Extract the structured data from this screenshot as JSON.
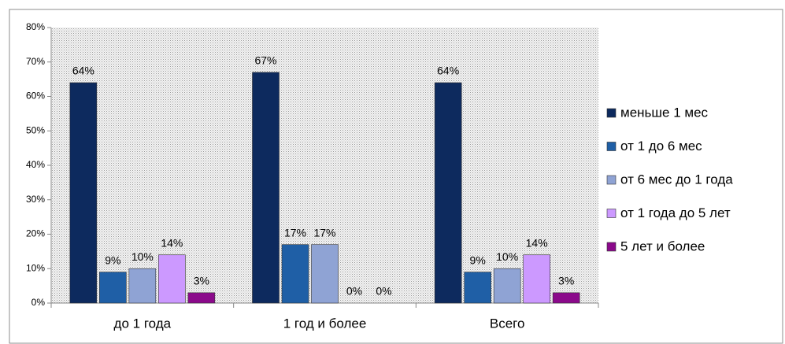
{
  "chart_data": {
    "type": "bar",
    "categories": [
      "до 1 года",
      "1 год и более",
      "Всего"
    ],
    "series": [
      {
        "name": "меньше 1 мес",
        "color": "#0d2a5e",
        "values": [
          64,
          67,
          64
        ],
        "value_labels": [
          "64%",
          "67%",
          "64%"
        ]
      },
      {
        "name": "от 1 до 6 мес",
        "color": "#1f5fa6",
        "values": [
          9,
          17,
          9
        ],
        "value_labels": [
          "9%",
          "17%",
          "9%"
        ]
      },
      {
        "name": "от 6 мес до 1 года",
        "color": "#8fa3d4",
        "values": [
          10,
          17,
          10
        ],
        "value_labels": [
          "10%",
          "17%",
          "10%"
        ]
      },
      {
        "name": "от 1 года до 5 лет",
        "color": "#cc99ff",
        "values": [
          14,
          0,
          14
        ],
        "value_labels": [
          "14%",
          "0%",
          "14%"
        ]
      },
      {
        "name": "5 лет и более",
        "color": "#8b0a8b",
        "values": [
          3,
          0,
          3
        ],
        "value_labels": [
          "3%",
          "0%",
          "3%"
        ]
      }
    ],
    "ylim": [
      0,
      80
    ],
    "yticks": [
      {
        "value": 0,
        "label": "0%"
      },
      {
        "value": 10,
        "label": "10%"
      },
      {
        "value": 20,
        "label": "20%"
      },
      {
        "value": 30,
        "label": "30%"
      },
      {
        "value": 40,
        "label": "40%"
      },
      {
        "value": 50,
        "label": "50%"
      },
      {
        "value": 60,
        "label": "60%"
      },
      {
        "value": 70,
        "label": "70%"
      },
      {
        "value": 80,
        "label": "80%"
      }
    ],
    "legend": "right"
  }
}
